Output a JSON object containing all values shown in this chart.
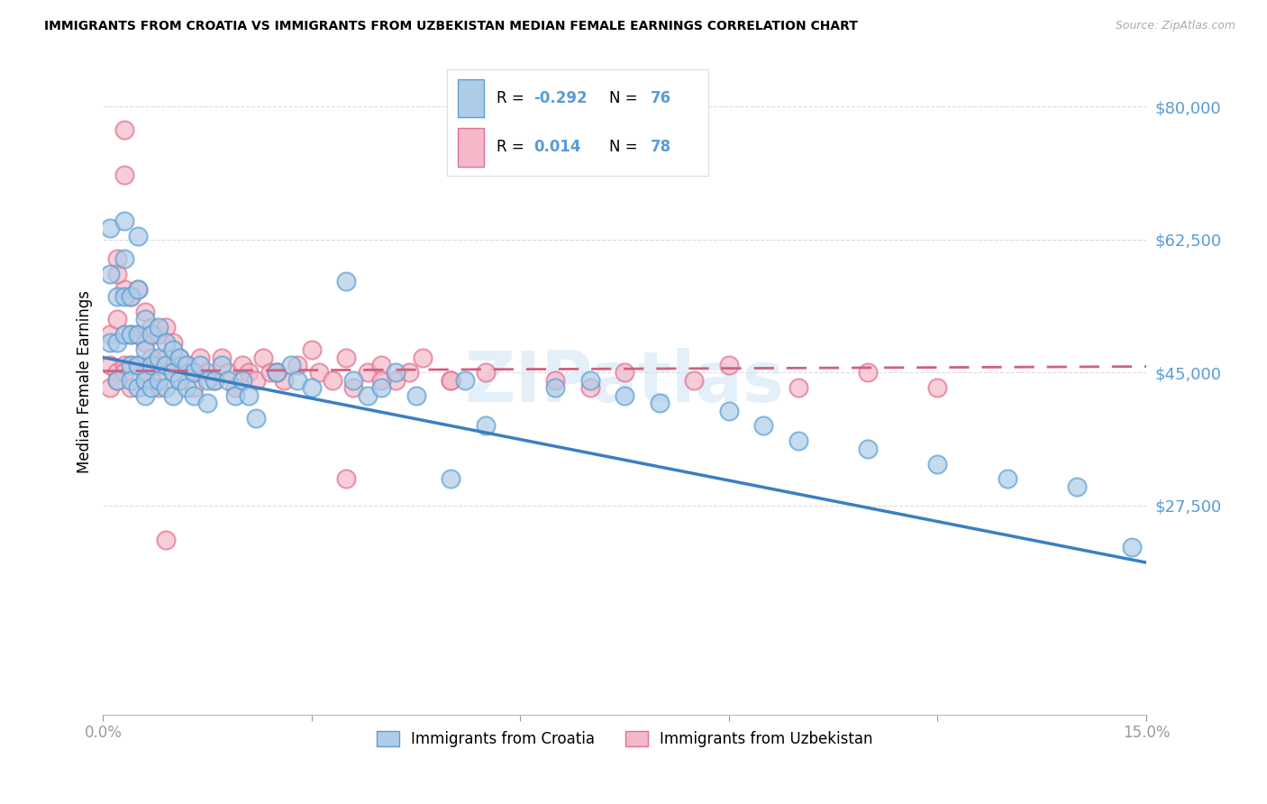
{
  "title": "IMMIGRANTS FROM CROATIA VS IMMIGRANTS FROM UZBEKISTAN MEDIAN FEMALE EARNINGS CORRELATION CHART",
  "source": "Source: ZipAtlas.com",
  "ylabel": "Median Female Earnings",
  "xlim": [
    0,
    0.15
  ],
  "ylim": [
    0,
    87500
  ],
  "yticks": [
    27500,
    45000,
    62500,
    80000
  ],
  "ytick_labels": [
    "$27,500",
    "$45,000",
    "$62,500",
    "$80,000"
  ],
  "xtick_positions": [
    0.0,
    0.03,
    0.06,
    0.09,
    0.12,
    0.15
  ],
  "xtick_labels": [
    "0.0%",
    "",
    "",
    "",
    "",
    "15.0%"
  ],
  "croatia_dot_color": "#aecce8",
  "croatia_edge_color": "#5a9fd4",
  "uzbekistan_dot_color": "#f5b8c8",
  "uzbekistan_edge_color": "#e07090",
  "croatia_line_color": "#3a7fc1",
  "uzbekistan_line_color": "#d06080",
  "axis_color": "#5b9bd5",
  "grid_color": "#cccccc",
  "watermark_text": "ZIPatlas",
  "watermark_color": "#cce4f5",
  "legend_R_croatia": "-0.292",
  "legend_N_croatia": "76",
  "legend_R_uzbekistan": "0.014",
  "legend_N_uzbekistan": "78",
  "croatia_label": "Immigrants from Croatia",
  "uzbekistan_label": "Immigrants from Uzbekistan",
  "croatia_trend": [
    47000,
    20000
  ],
  "uzbekistan_trend": [
    45200,
    45800
  ],
  "croatia_x": [
    0.001,
    0.001,
    0.001,
    0.002,
    0.002,
    0.002,
    0.003,
    0.003,
    0.003,
    0.003,
    0.004,
    0.004,
    0.004,
    0.004,
    0.005,
    0.005,
    0.005,
    0.005,
    0.005,
    0.006,
    0.006,
    0.006,
    0.006,
    0.007,
    0.007,
    0.007,
    0.008,
    0.008,
    0.008,
    0.009,
    0.009,
    0.009,
    0.01,
    0.01,
    0.01,
    0.011,
    0.011,
    0.012,
    0.012,
    0.013,
    0.013,
    0.014,
    0.015,
    0.015,
    0.016,
    0.017,
    0.018,
    0.019,
    0.02,
    0.021,
    0.022,
    0.025,
    0.027,
    0.028,
    0.03,
    0.035,
    0.036,
    0.038,
    0.04,
    0.042,
    0.045,
    0.05,
    0.052,
    0.055,
    0.065,
    0.07,
    0.075,
    0.08,
    0.09,
    0.095,
    0.1,
    0.11,
    0.12,
    0.13,
    0.14,
    0.148
  ],
  "croatia_y": [
    49000,
    64000,
    58000,
    55000,
    49000,
    44000,
    65000,
    60000,
    55000,
    50000,
    55000,
    50000,
    46000,
    44000,
    63000,
    56000,
    50000,
    46000,
    43000,
    52000,
    48000,
    44000,
    42000,
    50000,
    46000,
    43000,
    51000,
    47000,
    44000,
    49000,
    46000,
    43000,
    48000,
    45000,
    42000,
    47000,
    44000,
    46000,
    43000,
    45000,
    42000,
    46000,
    44000,
    41000,
    44000,
    46000,
    44000,
    42000,
    44000,
    42000,
    39000,
    45000,
    46000,
    44000,
    43000,
    57000,
    44000,
    42000,
    43000,
    45000,
    42000,
    31000,
    44000,
    38000,
    43000,
    44000,
    42000,
    41000,
    40000,
    38000,
    36000,
    35000,
    33000,
    31000,
    30000,
    22000
  ],
  "uzbekistan_x": [
    0.001,
    0.001,
    0.001,
    0.002,
    0.002,
    0.002,
    0.003,
    0.003,
    0.003,
    0.004,
    0.004,
    0.004,
    0.005,
    0.005,
    0.005,
    0.006,
    0.006,
    0.006,
    0.007,
    0.007,
    0.007,
    0.008,
    0.008,
    0.008,
    0.009,
    0.009,
    0.01,
    0.01,
    0.011,
    0.011,
    0.012,
    0.013,
    0.013,
    0.014,
    0.015,
    0.016,
    0.017,
    0.018,
    0.019,
    0.02,
    0.021,
    0.022,
    0.023,
    0.024,
    0.025,
    0.026,
    0.028,
    0.03,
    0.031,
    0.033,
    0.035,
    0.036,
    0.038,
    0.04,
    0.042,
    0.044,
    0.046,
    0.05,
    0.055,
    0.065,
    0.07,
    0.075,
    0.085,
    0.09,
    0.1,
    0.11,
    0.12,
    0.04,
    0.025,
    0.035,
    0.05,
    0.003,
    0.002,
    0.002,
    0.003,
    0.004,
    0.006,
    0.009
  ],
  "uzbekistan_y": [
    50000,
    46000,
    43000,
    60000,
    52000,
    45000,
    77000,
    71000,
    56000,
    55000,
    50000,
    46000,
    56000,
    50000,
    46000,
    53000,
    49000,
    45000,
    51000,
    47000,
    44000,
    50000,
    46000,
    43000,
    51000,
    47000,
    49000,
    45000,
    47000,
    44000,
    46000,
    45000,
    43000,
    47000,
    45000,
    44000,
    47000,
    45000,
    43000,
    46000,
    45000,
    44000,
    47000,
    45000,
    45000,
    44000,
    46000,
    48000,
    45000,
    44000,
    47000,
    43000,
    45000,
    46000,
    44000,
    45000,
    47000,
    44000,
    45000,
    44000,
    43000,
    45000,
    44000,
    46000,
    43000,
    45000,
    43000,
    44000,
    45000,
    31000,
    44000,
    46000,
    58000,
    44000,
    45000,
    43000,
    45000,
    23000
  ]
}
